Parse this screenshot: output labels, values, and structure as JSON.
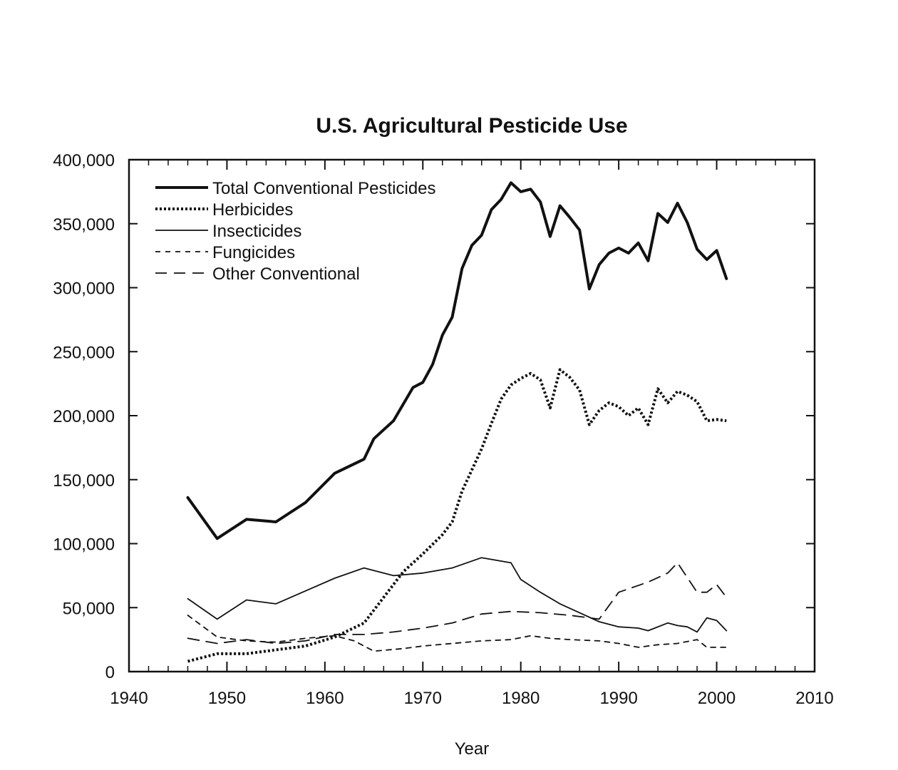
{
  "chart_data": {
    "type": "line",
    "title": "U.S. Agricultural Pesticide Use",
    "xlabel": "Year",
    "ylabel": "",
    "xlim": [
      1940,
      2010
    ],
    "ylim": [
      0,
      400000
    ],
    "x_ticks": [
      1940,
      1950,
      1960,
      1970,
      1980,
      1990,
      2000,
      2010
    ],
    "x_tick_labels": [
      "1940",
      "1950",
      "1960",
      "1970",
      "1980",
      "1990",
      "2000",
      "2010"
    ],
    "y_ticks": [
      0,
      50000,
      100000,
      150000,
      200000,
      250000,
      300000,
      350000,
      400000
    ],
    "y_tick_labels": [
      "0",
      "50,000",
      "100,000",
      "150,000",
      "200,000",
      "250,000",
      "300,000",
      "350,000",
      "400,000"
    ],
    "grid": false,
    "legend_position": "top-left",
    "series": [
      {
        "name": "Total Conventional Pesticides",
        "style": "solid-thick",
        "color": "#111111",
        "x": [
          1946,
          1949,
          1952,
          1955,
          1958,
          1961,
          1964,
          1965,
          1967,
          1969,
          1970,
          1971,
          1972,
          1973,
          1974,
          1975,
          1976,
          1977,
          1978,
          1979,
          1980,
          1981,
          1982,
          1983,
          1984,
          1985,
          1986,
          1987,
          1988,
          1989,
          1990,
          1991,
          1992,
          1993,
          1994,
          1995,
          1996,
          1997,
          1998,
          1999,
          2000,
          2001
        ],
        "y": [
          136000,
          104000,
          119000,
          117000,
          132000,
          155000,
          166000,
          182000,
          196000,
          222000,
          226000,
          240000,
          263000,
          277000,
          315000,
          333000,
          341000,
          361000,
          369000,
          382000,
          375000,
          377000,
          367000,
          340000,
          364000,
          355000,
          345000,
          299000,
          318000,
          327000,
          331000,
          327000,
          335000,
          321000,
          358000,
          351000,
          366000,
          351000,
          330000,
          322000,
          329000,
          307000
        ]
      },
      {
        "name": "Herbicides",
        "style": "dotted",
        "color": "#111111",
        "x": [
          1946,
          1949,
          1952,
          1955,
          1958,
          1961,
          1964,
          1966,
          1968,
          1970,
          1972,
          1973,
          1974,
          1976,
          1977,
          1978,
          1979,
          1980,
          1981,
          1982,
          1983,
          1984,
          1985,
          1986,
          1987,
          1988,
          1989,
          1990,
          1991,
          1992,
          1993,
          1994,
          1995,
          1996,
          1997,
          1998,
          1999,
          2000,
          2001
        ],
        "y": [
          8000,
          14000,
          14000,
          17000,
          20000,
          27000,
          38000,
          58000,
          78000,
          92000,
          107000,
          117000,
          141000,
          174000,
          194000,
          213000,
          224000,
          229000,
          233000,
          228000,
          206000,
          236000,
          230000,
          220000,
          193000,
          204000,
          210000,
          207000,
          200000,
          206000,
          193000,
          221000,
          210000,
          219000,
          216000,
          211000,
          196000,
          197000,
          196000
        ]
      },
      {
        "name": "Insecticides",
        "style": "solid-thin",
        "color": "#111111",
        "x": [
          1946,
          1949,
          1952,
          1955,
          1958,
          1961,
          1964,
          1967,
          1970,
          1973,
          1976,
          1979,
          1980,
          1982,
          1984,
          1986,
          1988,
          1990,
          1992,
          1993,
          1995,
          1996,
          1997,
          1998,
          1999,
          2000,
          2001
        ],
        "y": [
          57000,
          41000,
          56000,
          53000,
          63000,
          73000,
          81000,
          75000,
          77000,
          81000,
          89000,
          85000,
          72000,
          62000,
          53000,
          46000,
          39000,
          35000,
          34000,
          32000,
          38000,
          36000,
          35000,
          31000,
          42000,
          40000,
          32000
        ]
      },
      {
        "name": "Fungicides",
        "style": "dashed-short",
        "color": "#111111",
        "x": [
          1946,
          1949,
          1952,
          1955,
          1958,
          1961,
          1963,
          1965,
          1968,
          1970,
          1973,
          1976,
          1979,
          1981,
          1983,
          1985,
          1988,
          1990,
          1992,
          1994,
          1996,
          1998,
          1999,
          2000,
          2001
        ],
        "y": [
          44000,
          27000,
          24000,
          23000,
          26000,
          28000,
          24000,
          16000,
          18000,
          20000,
          22000,
          24000,
          25000,
          28000,
          26000,
          25000,
          24000,
          22000,
          19000,
          21000,
          22000,
          25000,
          19000,
          19000,
          19000
        ]
      },
      {
        "name": "Other Conventional",
        "style": "dashed-long",
        "color": "#111111",
        "x": [
          1946,
          1949,
          1952,
          1955,
          1958,
          1961,
          1964,
          1967,
          1970,
          1973,
          1976,
          1979,
          1982,
          1985,
          1988,
          1990,
          1993,
          1995,
          1996,
          1998,
          1999,
          2000,
          2001
        ],
        "y": [
          26000,
          22000,
          25000,
          22000,
          24000,
          29000,
          29000,
          31000,
          34000,
          38000,
          45000,
          47000,
          46000,
          44000,
          41000,
          62000,
          70000,
          77000,
          85000,
          62000,
          62000,
          68000,
          58000
        ]
      }
    ]
  }
}
